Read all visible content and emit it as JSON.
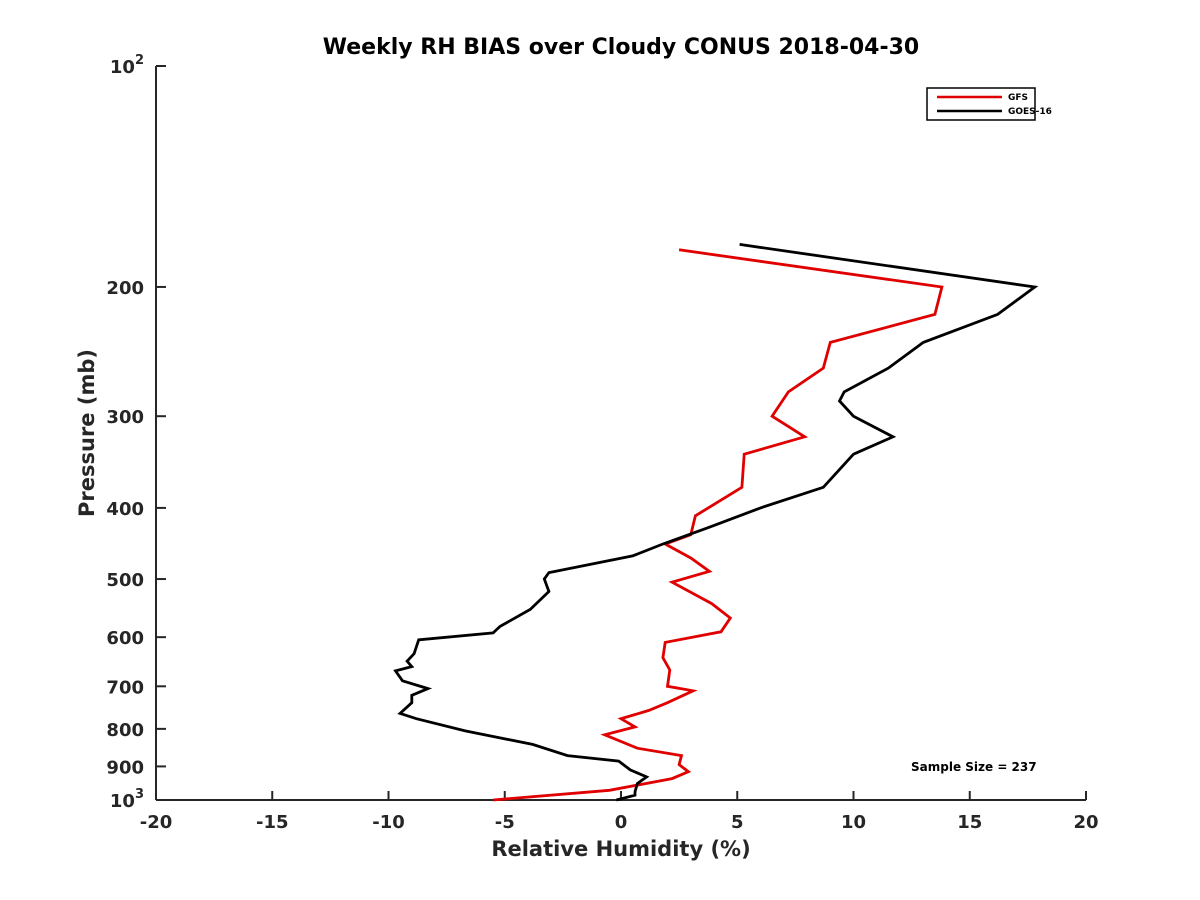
{
  "chart_data": {
    "type": "line",
    "title": "Weekly RH BIAS over Cloudy CONUS 2018-04-30",
    "xlabel": "Relative Humidity (%)",
    "ylabel": "Pressure (mb)",
    "xlim": [
      -20,
      20
    ],
    "ylim": [
      100,
      1000
    ],
    "yscale": "log",
    "y_reversed": true,
    "x_ticks": [
      -20,
      -15,
      -10,
      -5,
      0,
      5,
      10,
      15,
      20
    ],
    "x_tick_labels": [
      "-20",
      "-15",
      "-10",
      "-5",
      "0",
      "5",
      "10",
      "15",
      "20"
    ],
    "y_ticks": [
      100,
      200,
      300,
      400,
      500,
      600,
      700,
      800,
      900,
      1000
    ],
    "y_tick_labels": [
      {
        "base": "10",
        "exp": "2"
      },
      {
        "base": "200",
        "exp": ""
      },
      {
        "base": "300",
        "exp": ""
      },
      {
        "base": "400",
        "exp": ""
      },
      {
        "base": "500",
        "exp": ""
      },
      {
        "base": "600",
        "exp": ""
      },
      {
        "base": "700",
        "exp": ""
      },
      {
        "base": "800",
        "exp": ""
      },
      {
        "base": "900",
        "exp": ""
      },
      {
        "base": "10",
        "exp": "3"
      }
    ],
    "grid": false,
    "legend_position": "top-right",
    "annotation": "Sample Size = 237",
    "series": [
      {
        "name": "GFS",
        "color": "#e00000",
        "points": [
          [
            2.5,
            178
          ],
          [
            13.8,
            200
          ],
          [
            13.5,
            218
          ],
          [
            9.0,
            238
          ],
          [
            8.7,
            258
          ],
          [
            7.2,
            278
          ],
          [
            6.5,
            300
          ],
          [
            7.9,
            320
          ],
          [
            5.3,
            338
          ],
          [
            5.2,
            375
          ],
          [
            3.2,
            410
          ],
          [
            3.0,
            435
          ],
          [
            1.9,
            448
          ],
          [
            3.0,
            468
          ],
          [
            3.8,
            488
          ],
          [
            2.2,
            505
          ],
          [
            3.9,
            540
          ],
          [
            4.7,
            565
          ],
          [
            4.3,
            590
          ],
          [
            1.9,
            610
          ],
          [
            1.8,
            640
          ],
          [
            2.1,
            665
          ],
          [
            2.0,
            700
          ],
          [
            3.1,
            710
          ],
          [
            2.0,
            737
          ],
          [
            1.2,
            755
          ],
          [
            0.0,
            775
          ],
          [
            0.6,
            795
          ],
          [
            -0.7,
            815
          ],
          [
            0.7,
            850
          ],
          [
            2.6,
            870
          ],
          [
            2.5,
            895
          ],
          [
            2.9,
            915
          ],
          [
            2.2,
            935
          ],
          [
            -0.5,
            970
          ],
          [
            -5.5,
            1000
          ]
        ]
      },
      {
        "name": "GOES-16",
        "color": "#000000",
        "points": [
          [
            5.1,
            175
          ],
          [
            17.8,
            200
          ],
          [
            16.2,
            218
          ],
          [
            13.0,
            238
          ],
          [
            11.5,
            258
          ],
          [
            9.6,
            278
          ],
          [
            9.4,
            286
          ],
          [
            10.0,
            300
          ],
          [
            11.7,
            320
          ],
          [
            10.0,
            338
          ],
          [
            8.7,
            375
          ],
          [
            6.0,
            400
          ],
          [
            3.8,
            425
          ],
          [
            1.8,
            448
          ],
          [
            0.5,
            465
          ],
          [
            -3.1,
            490
          ],
          [
            -3.3,
            500
          ],
          [
            -3.1,
            520
          ],
          [
            -3.9,
            550
          ],
          [
            -5.2,
            580
          ],
          [
            -5.5,
            592
          ],
          [
            -8.7,
            605
          ],
          [
            -8.9,
            632
          ],
          [
            -9.2,
            647
          ],
          [
            -9.0,
            658
          ],
          [
            -9.7,
            667
          ],
          [
            -9.4,
            688
          ],
          [
            -8.3,
            705
          ],
          [
            -9.0,
            720
          ],
          [
            -9.0,
            737
          ],
          [
            -9.5,
            762
          ],
          [
            -8.8,
            775
          ],
          [
            -6.7,
            805
          ],
          [
            -3.8,
            840
          ],
          [
            -2.3,
            870
          ],
          [
            -0.1,
            885
          ],
          [
            0.4,
            910
          ],
          [
            1.1,
            930
          ],
          [
            0.7,
            950
          ],
          [
            0.6,
            975
          ],
          [
            0.6,
            985
          ],
          [
            -0.2,
            1000
          ]
        ]
      }
    ]
  }
}
